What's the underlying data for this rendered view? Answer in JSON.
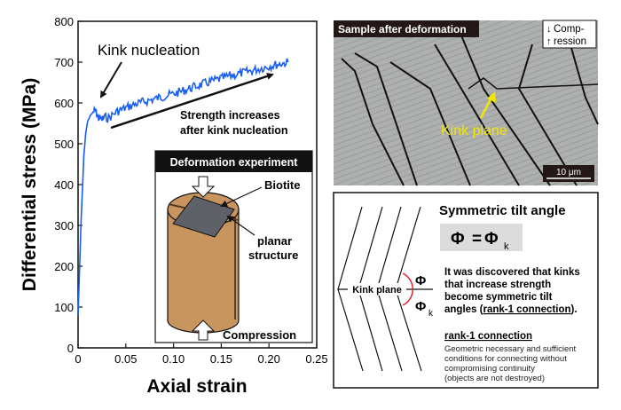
{
  "chart_data": {
    "type": "line",
    "xlabel": "Axial strain",
    "ylabel": "Differential stress (MPa)",
    "xlim": [
      0,
      0.25
    ],
    "ylim": [
      0,
      800
    ],
    "xticks": [
      "0",
      "0.05",
      "0.10",
      "0.15",
      "0.20",
      "0.25"
    ],
    "xtick_values": [
      0,
      0.05,
      0.1,
      0.15,
      0.2,
      0.25
    ],
    "yticks": [
      "0",
      "100",
      "200",
      "300",
      "400",
      "500",
      "600",
      "700",
      "800"
    ],
    "ytick_values": [
      0,
      100,
      200,
      300,
      400,
      500,
      600,
      700,
      800
    ],
    "grid": false,
    "series": [
      {
        "color": "#1a5ff0",
        "x": [
          0,
          0.003,
          0.006,
          0.008,
          0.01,
          0.013,
          0.016,
          0.018,
          0.02,
          0.022,
          0.025,
          0.028,
          0.032,
          0.04,
          0.05,
          0.06,
          0.08,
          0.1,
          0.12,
          0.14,
          0.16,
          0.18,
          0.2,
          0.22
        ],
        "y": [
          80,
          300,
          470,
          525,
          555,
          570,
          578,
          582,
          570,
          562,
          560,
          565,
          563,
          578,
          588,
          597,
          610,
          622,
          638,
          653,
          667,
          678,
          690,
          700
        ]
      }
    ],
    "annotations": {
      "kink_nucleation": "Kink nucleation",
      "strength_line1": "Strength increases",
      "strength_line2": "after kink nucleation"
    }
  },
  "inset": {
    "title": "Deformation experiment",
    "biotite": "Biotite",
    "planar1": "planar",
    "planar2": "structure",
    "compression": "Compression",
    "colors": {
      "cylinder": "#c9955f",
      "plate": "#5e6168"
    }
  },
  "photo": {
    "title": "Sample after deformation",
    "legend_line1": "Comp-",
    "legend_line2": "ression",
    "kink_label": "Kink plane",
    "scale_bar": "10 μm",
    "label_color": "#f3e600"
  },
  "tilt": {
    "title": "Symmetric tilt angle",
    "eq_left": "Φ",
    "eq_eq": "=",
    "eq_right": "Φ",
    "eq_sub": "k",
    "kink_plane": "Kink plane",
    "phi": "Φ",
    "phi_k": "Φ",
    "phi_k_sub": "k",
    "desc": [
      "It was discovered that kinks",
      "that increase strength",
      "become symmetric tilt"
    ],
    "desc_last_pre": "angles (",
    "desc_last_link": "rank-1 connection",
    "desc_last_post": ").",
    "rank_title": "rank-1 connection",
    "rank_desc": [
      "Geometric necessary and sufficient",
      "conditions for connecting without",
      "compromising continuity",
      "(objects are not destroyed)"
    ]
  }
}
